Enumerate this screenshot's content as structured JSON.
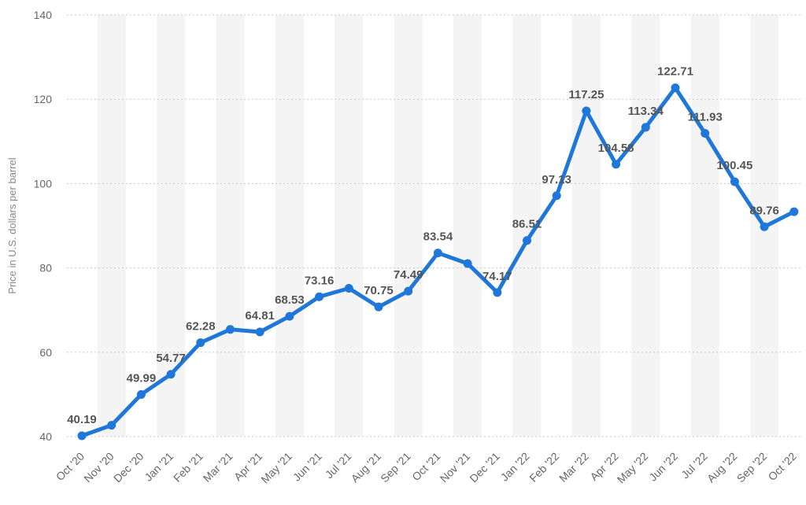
{
  "chart_data": {
    "type": "line",
    "title": "",
    "xlabel": "",
    "ylabel": "Price in U.S. dollars per barrel",
    "ylim": [
      40,
      140
    ],
    "yticks": [
      40,
      60,
      80,
      100,
      120,
      140
    ],
    "grid": true,
    "legend": "none",
    "categories": [
      "Oct '20",
      "Nov '20",
      "Dec '20",
      "Jan '21",
      "Feb '21",
      "Mar '21",
      "Apr '21",
      "May '21",
      "Jun '21",
      "Jul '21",
      "Aug '21",
      "Sep '21",
      "Oct '21",
      "Nov '21",
      "Dec '21",
      "Jan '22",
      "Feb '22",
      "Mar '22",
      "Apr '22",
      "May '22",
      "Jun '22",
      "Jul '22",
      "Aug '22",
      "Sep '22",
      "Oct '22"
    ],
    "series": [
      {
        "values": [
          40.19,
          42.69,
          49.99,
          54.77,
          62.28,
          65.41,
          64.81,
          68.53,
          73.16,
          75.17,
          70.75,
          74.49,
          83.54,
          81.05,
          74.17,
          86.51,
          97.13,
          117.25,
          104.58,
          113.34,
          122.71,
          111.93,
          100.45,
          89.76,
          93.33
        ],
        "labels": [
          "40.19",
          "",
          "49.99",
          "54.77",
          "62.28",
          "",
          "64.81",
          "68.53",
          "73.16",
          "",
          "70.75",
          "74.49",
          "83.54",
          "",
          "74.17",
          "86.51",
          "97.13",
          "117.25",
          "104.58",
          "113.34",
          "122.71",
          "111.93",
          "100.45",
          "89.76",
          ""
        ],
        "color": "#1f77d9"
      }
    ]
  }
}
